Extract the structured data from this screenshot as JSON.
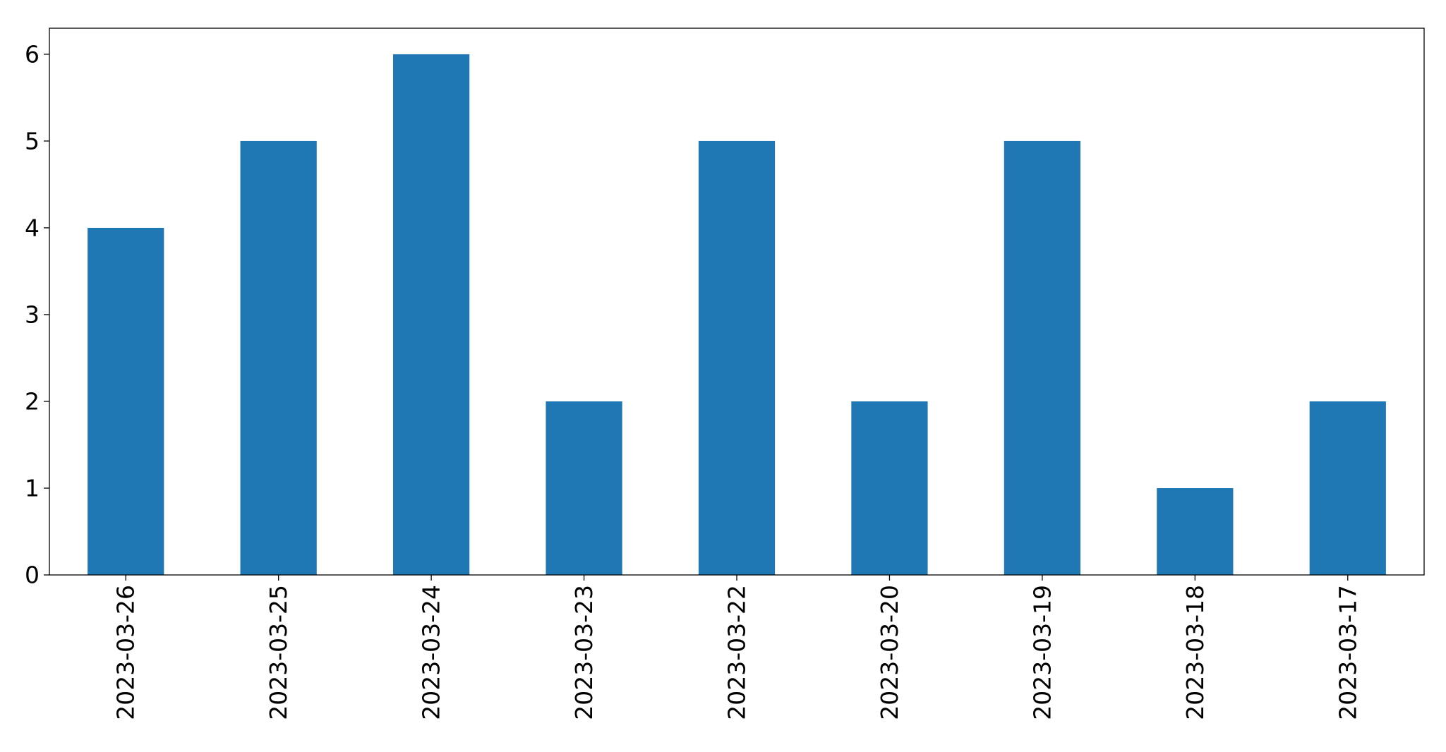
{
  "chart_data": {
    "type": "bar",
    "title": "",
    "xlabel": "",
    "ylabel": "",
    "categories": [
      "2023-03-26",
      "2023-03-25",
      "2023-03-24",
      "2023-03-23",
      "2023-03-22",
      "2023-03-20",
      "2023-03-19",
      "2023-03-18",
      "2023-03-17"
    ],
    "values": [
      4,
      5,
      6,
      2,
      5,
      2,
      5,
      1,
      2
    ],
    "ylim": [
      0,
      6.3
    ],
    "yticks": [
      "0",
      "1",
      "2",
      "3",
      "4",
      "5",
      "6"
    ],
    "grid": false,
    "legend": "none",
    "bar_color": "#1f77b4"
  }
}
